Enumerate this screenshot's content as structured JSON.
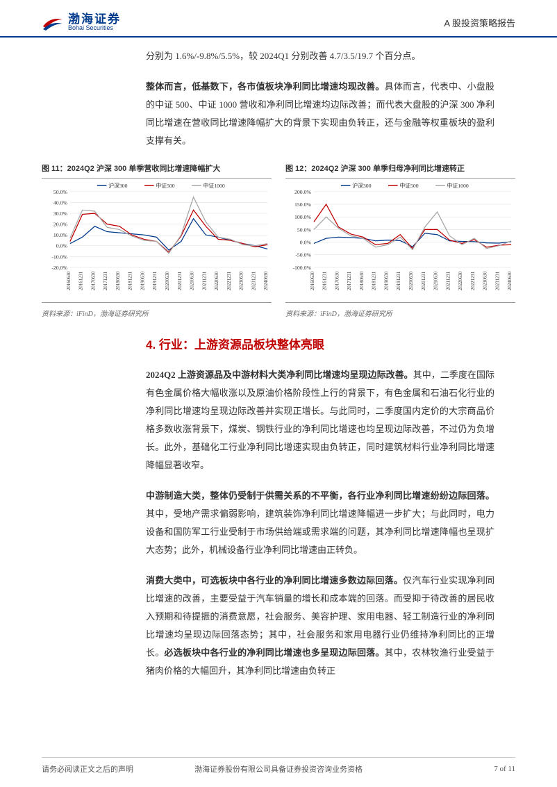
{
  "header": {
    "logo_cn": "渤海证券",
    "logo_en": "Bohai Securities",
    "doc_type": "A 股投资策略报告"
  },
  "logo_colors": {
    "blue": "#003a8c",
    "red": "#c00000"
  },
  "body": {
    "p0": "分别为 1.6%/-9.8%/5.5%，较 2024Q1 分别改善 4.7/3.5/19.7 个百分点。",
    "p1_bold": "整体而言，低基数下，各市值板块净利同比增速均现改善。",
    "p1_rest": "具体而言，代表中、小盘股的中证 500、中证 1000 营收和净利同比增速均边际改善；而代表大盘股的沪深 300 净利同比增速在营收同比增速降幅扩大的背景下实现由负转正，还与金融等权重板块的盈利支撑有关。"
  },
  "chart11": {
    "title": "图 11：2024Q2 沪深 300 单季营收同比增速降幅扩大",
    "source": "资料来源：iFinD，渤海证券研究所",
    "type": "line",
    "legend": [
      "沪深300",
      "中证500",
      "中证1000"
    ],
    "colors": [
      "#003a8c",
      "#c00000",
      "#a6a6a6"
    ],
    "x_labels": [
      "20160630",
      "20161231",
      "20170630",
      "20171231",
      "20180630",
      "20181231",
      "20190630",
      "20191231",
      "20200630",
      "20201231",
      "20210630",
      "20211231",
      "20220630",
      "20221231",
      "20230630",
      "20231231",
      "20240630"
    ],
    "ylim": [
      -20,
      50
    ],
    "ytick_step": 10,
    "ytick_format": "percent",
    "grid_color": "#d9d9d9",
    "background": "#ffffff",
    "line_width": 1.3,
    "series": {
      "hs300": [
        2,
        8,
        18,
        13,
        12,
        11,
        10,
        8,
        -4,
        4,
        25,
        10,
        8,
        5,
        2,
        0,
        -3
      ],
      "zz500": [
        4,
        29,
        30,
        20,
        18,
        10,
        6,
        4,
        -6,
        9,
        33,
        18,
        6,
        5,
        2,
        -1,
        1
      ],
      "zz1000": [
        7,
        33,
        32,
        17,
        15,
        9,
        5,
        4,
        -7,
        10,
        45,
        22,
        8,
        6,
        1,
        0,
        2
      ]
    }
  },
  "chart12": {
    "title": "图 12：2024Q2 沪深 300 单季归母净利同比增速转正",
    "source": "资料来源：iFinD，渤海证券研究所",
    "type": "line",
    "legend": [
      "沪深300",
      "中证500",
      "中证1000"
    ],
    "colors": [
      "#003a8c",
      "#c00000",
      "#a6a6a6"
    ],
    "x_labels": [
      "20160630",
      "20161231",
      "20170630",
      "20171231",
      "20180630",
      "20181231",
      "20190630",
      "20191231",
      "20200630",
      "20201231",
      "20210630",
      "20211231",
      "20220630",
      "20221231",
      "20230630",
      "20231231",
      "20240630"
    ],
    "ylim": [
      -100,
      200
    ],
    "ytick_step": 50,
    "ytick_format": "percent",
    "grid_color": "#d9d9d9",
    "background": "#ffffff",
    "line_width": 1.3,
    "series": {
      "hs300": [
        -5,
        15,
        20,
        18,
        15,
        5,
        8,
        6,
        -18,
        35,
        30,
        5,
        3,
        2,
        -3,
        -4,
        2
      ],
      "zz500": [
        80,
        150,
        60,
        32,
        20,
        -10,
        -5,
        30,
        -25,
        50,
        50,
        8,
        -5,
        10,
        -20,
        -12,
        -10
      ],
      "zz1000": [
        50,
        100,
        55,
        25,
        15,
        -20,
        -10,
        20,
        -30,
        60,
        120,
        25,
        -10,
        15,
        -25,
        -14,
        5
      ]
    }
  },
  "sec4": {
    "heading": "4.  行业：上游资源品板块整体亮眼",
    "p2_bold": "2024Q2 上游资源品及中游材料大类净利同比增速均呈现边际改善。",
    "p2_rest": "其中，二季度在国际有色金属价格大幅收涨以及原油价格阶段性上行的背景下，有色金属和石油石化行业的净利同比增速均呈现边际改善并实现正增长。与此同时，二季度国内定价的大宗商品价格多数收涨背景下，煤炭、钢铁行业的净利同比增速也均呈现边际改善，不过仍为负增长。此外，基础化工行业净利同比增速实现由负转正，同时建筑材料行业净利同比增速降幅显著收窄。",
    "p3_bold": "中游制造大类，整体仍受制于供需关系的不平衡，各行业净利同比增速纷纷边际回落。",
    "p3_rest": "其中，受地产需求偏弱影响，建筑装饰净利同比增速降幅进一步扩大；与此同时，电力设备和国防军工行业受制于市场供给端或需求端的问题，其净利同比增速降幅也呈现扩大态势；此外，机械设备行业净利同比增速由正转负。",
    "p4_bold1": "消费大类中，可选板块中各行业的净利同比增速多数边际回落。",
    "p4_mid": "仅汽车行业实现净利同比增速的改善，主要受益于汽车销量的增长和成本端的回落。而受抑于待改善的居民收入预期和待提振的消费意愿，社会服务、美容护理、家用电器、轻工制造行业的净利同比增速均呈现边际回落态势；其中，社会服务和家用电器行业仍维持净利同比的正增长。",
    "p4_bold2": "必选板块中各行业的净利同比增速也多呈现边际回落。",
    "p4_rest": "其中，农林牧渔行业受益于猪肉价格的大幅回升，其净利同比增速由负转正"
  },
  "footer": {
    "left": "请务必阅读正文之后的声明",
    "center": "渤海证券股份有限公司具备证券投资咨询业务资格",
    "right": "7 of 11"
  }
}
